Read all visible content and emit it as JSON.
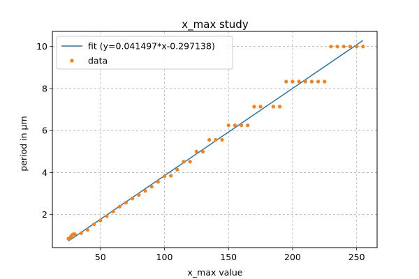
{
  "chart_data": {
    "type": "scatter",
    "title": "x_max study",
    "xlabel": "x_max value",
    "ylabel": "period in µm",
    "xlim": [
      12.5,
      266
    ],
    "ylim": [
      0.43,
      10.72
    ],
    "xticks": [
      50,
      100,
      150,
      200,
      250
    ],
    "yticks": [
      2,
      4,
      6,
      8,
      10
    ],
    "grid": true,
    "legend_position": "top-left",
    "series": [
      {
        "name": "fit (y=0.041497*x-0.297138)",
        "kind": "line",
        "color": "#1f77b4",
        "x": [
          25,
          255
        ],
        "y": [
          0.74,
          10.29
        ]
      },
      {
        "name": "data",
        "kind": "scatter",
        "color": "#ff7f0e",
        "x": [
          25,
          26,
          27,
          28,
          29,
          30,
          35,
          40,
          45,
          50,
          55,
          60,
          65,
          70,
          75,
          80,
          85,
          90,
          95,
          100,
          105,
          110,
          115,
          120,
          125,
          130,
          135,
          140,
          145,
          150,
          155,
          160,
          165,
          170,
          175,
          185,
          190,
          195,
          200,
          205,
          210,
          215,
          220,
          225,
          230,
          235,
          240,
          245,
          250,
          255
        ],
        "y": [
          0.86,
          0.86,
          0.96,
          1.03,
          1.07,
          1.07,
          1.12,
          1.27,
          1.54,
          1.72,
          1.93,
          2.15,
          2.38,
          2.57,
          2.77,
          2.94,
          3.13,
          3.33,
          3.56,
          3.83,
          3.85,
          4.14,
          4.52,
          4.52,
          5.0,
          5.0,
          5.56,
          5.56,
          5.56,
          6.25,
          6.25,
          6.25,
          6.25,
          7.14,
          7.14,
          7.14,
          7.14,
          8.33,
          8.33,
          8.33,
          8.33,
          8.33,
          8.33,
          8.33,
          10.0,
          10.0,
          10.0,
          10.0,
          10.0,
          10.0
        ]
      }
    ]
  }
}
